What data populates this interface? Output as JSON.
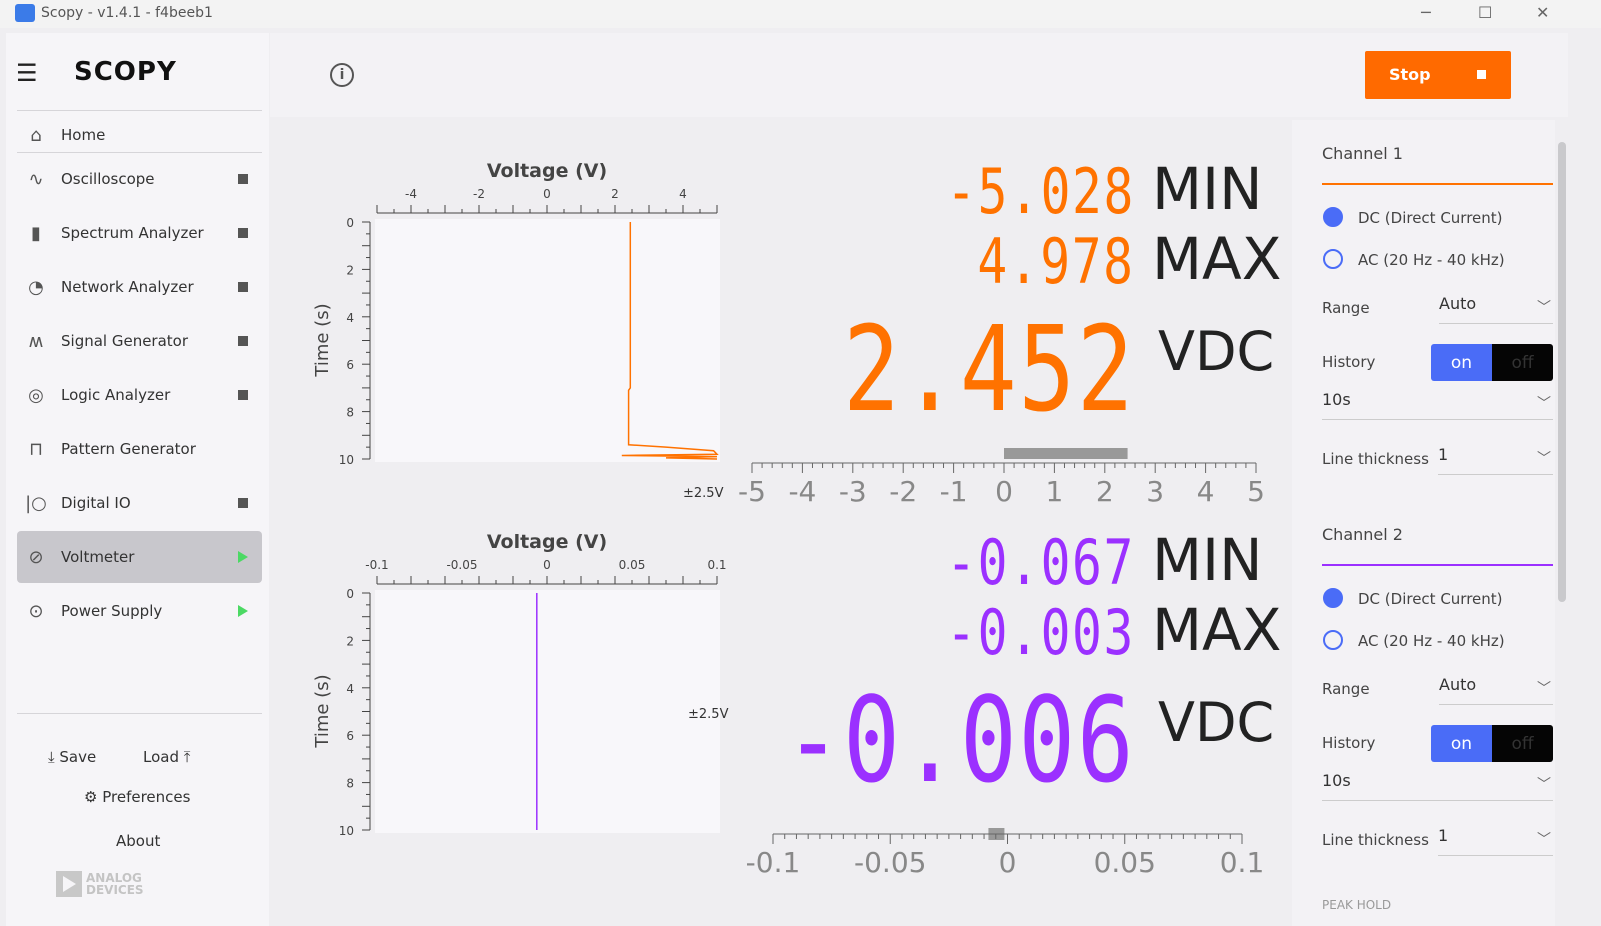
{
  "window": {
    "title": "Scopy - v1.4.1 - f4beeb1",
    "minimize": "─",
    "maximize": "☐",
    "close": "✕"
  },
  "sidebar": {
    "brand": "SCOPY",
    "items": [
      {
        "label": "Home",
        "icon": "home-icon",
        "status": "none"
      },
      {
        "label": "Oscilloscope",
        "icon": "oscilloscope-icon",
        "status": "stopped"
      },
      {
        "label": "Spectrum Analyzer",
        "icon": "spectrum-icon",
        "status": "stopped"
      },
      {
        "label": "Network Analyzer",
        "icon": "network-icon",
        "status": "stopped"
      },
      {
        "label": "Signal Generator",
        "icon": "signal-icon",
        "status": "stopped"
      },
      {
        "label": "Logic Analyzer",
        "icon": "logic-icon",
        "status": "stopped"
      },
      {
        "label": "Pattern Generator",
        "icon": "pattern-icon",
        "status": "none"
      },
      {
        "label": "Digital IO",
        "icon": "digital-io-icon",
        "status": "stopped"
      },
      {
        "label": "Voltmeter",
        "icon": "voltmeter-icon",
        "status": "running",
        "active": true
      },
      {
        "label": "Power Supply",
        "icon": "power-supply-icon",
        "status": "running"
      }
    ],
    "save": "Save",
    "load": "Load",
    "preferences": "Preferences",
    "about": "About",
    "logo_text": "ANALOG DEVICES"
  },
  "toolbar": {
    "stop_label": "Stop"
  },
  "colors": {
    "ch1": "#ff7200",
    "ch2": "#9b30ff",
    "accent": "#4a6cf7",
    "stop": "#ff6a00"
  },
  "channels": [
    {
      "name": "Channel 1",
      "min": "-5.028",
      "max": "4.978",
      "value": "2.452",
      "min_label": "MIN",
      "max_label": "MAX",
      "unit": "VDC",
      "range_label": "±2.5V",
      "chart": {
        "xlabel": "Voltage (V)",
        "ylabel": "Time (s)",
        "xlim": [
          -5,
          5
        ],
        "ylim": [
          0,
          10
        ],
        "xticks": [
          "-4",
          "-2",
          "0",
          "2",
          "4"
        ],
        "yticks": [
          "0",
          "2",
          "4",
          "6",
          "8",
          "10"
        ],
        "trace": [
          [
            2.45,
            0
          ],
          [
            2.45,
            7
          ],
          [
            2.4,
            7.1
          ],
          [
            2.4,
            9.4
          ],
          [
            3.5,
            9.5
          ],
          [
            4.9,
            9.65
          ],
          [
            5,
            9.8
          ],
          [
            2.2,
            9.85
          ],
          [
            5,
            9.9
          ],
          [
            3.5,
            9.95
          ],
          [
            5,
            10
          ]
        ]
      },
      "scale": {
        "ticks": [
          "-5",
          "-4",
          "-3",
          "-2",
          "-1",
          "0",
          "1",
          "2",
          "3",
          "4",
          "5"
        ],
        "min": -5,
        "max": 5,
        "value": 2.452
      },
      "coupling_dc": "DC (Direct Current)",
      "coupling_ac": "AC (20 Hz - 40 kHz)",
      "coupling": "DC",
      "range_text": "Range",
      "range": "Auto",
      "history_text": "History",
      "history_on": "on",
      "history_off": "off",
      "history_len": "10s",
      "line_text": "Line thickness",
      "line": "1"
    },
    {
      "name": "Channel 2",
      "min": "-0.067",
      "max": "-0.003",
      "value": "-0.006",
      "min_label": "MIN",
      "max_label": "MAX",
      "unit": "VDC",
      "range_label": "±2.5V",
      "chart": {
        "xlabel": "Voltage (V)",
        "ylabel": "Time (s)",
        "xlim": [
          -0.1,
          0.1
        ],
        "ylim": [
          0,
          10
        ],
        "xticks": [
          "-0.1",
          "-0.05",
          "0",
          "0.05",
          "0.1"
        ],
        "yticks": [
          "0",
          "2",
          "4",
          "6",
          "8",
          "10"
        ],
        "trace": [
          [
            -0.006,
            0
          ],
          [
            -0.006,
            10
          ]
        ]
      },
      "scale": {
        "ticks": [
          "-0.1",
          "-0.05",
          "0",
          "0.05",
          "0.1"
        ],
        "min": -0.1,
        "max": 0.1,
        "value": -0.006
      },
      "coupling_dc": "DC (Direct Current)",
      "coupling_ac": "AC (20 Hz - 40 kHz)",
      "coupling": "DC",
      "range_text": "Range",
      "range": "Auto",
      "history_text": "History",
      "history_on": "on",
      "history_off": "off",
      "history_len": "10s",
      "line_text": "Line thickness",
      "line": "1"
    }
  ],
  "peak_hold": "PEAK HOLD"
}
